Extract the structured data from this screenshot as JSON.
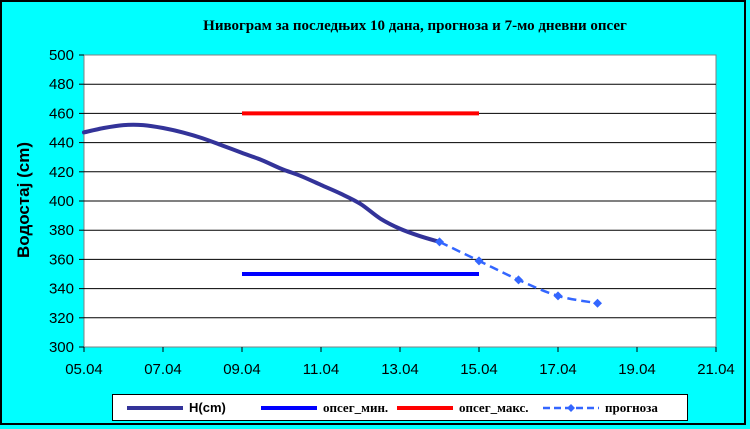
{
  "chart_data": {
    "type": "line",
    "title": "Ниво­грам за последњих 10 дана, прогноза и 7-мо дневни опсег",
    "ylabel": "Водостај (cm)",
    "xlabel": "",
    "ylim": [
      300,
      500
    ],
    "yticks": [
      "300",
      "320",
      "340",
      "360",
      "380",
      "400",
      "420",
      "440",
      "460",
      "480",
      "500"
    ],
    "xlim": [
      "05.04",
      "21.04"
    ],
    "xticks": [
      "05.04",
      "07.04",
      "09.04",
      "11.04",
      "13.04",
      "15.04",
      "17.04",
      "19.04",
      "21.04"
    ],
    "grid": "horizontal",
    "legend": "bottom",
    "series": [
      {
        "name": "H(cm)",
        "color": "#333399",
        "x": [
          5.0,
          5.5,
          6.0,
          6.5,
          7.0,
          7.5,
          8.0,
          8.5,
          9.0,
          9.5,
          10.0,
          10.5,
          11.0,
          11.5,
          12.0,
          12.5,
          13.0,
          13.5,
          14.0
        ],
        "y": [
          447,
          450,
          452,
          452,
          450,
          447,
          443,
          438,
          433,
          428,
          422,
          417,
          411,
          405,
          398,
          388,
          381,
          376,
          372
        ]
      },
      {
        "name": "опсег_мин.",
        "color": "#0000FF",
        "x": [
          9.0,
          15.0
        ],
        "y": [
          350,
          350
        ]
      },
      {
        "name": "опсег_макс.",
        "color": "#FF0000",
        "x": [
          9.0,
          15.0
        ],
        "y": [
          460,
          460
        ]
      },
      {
        "name": "прогноза",
        "color": "#3366FF",
        "x": [
          14.0,
          15.0,
          16.0,
          17.0,
          18.0
        ],
        "y": [
          372,
          359,
          346,
          335,
          330
        ]
      }
    ]
  },
  "title": "Ниво­грам за последњих 10 дана, прогноза и 7-мо дневни опсег",
  "legend": {
    "h": "H(cm)",
    "min": "опсег_мин.",
    "max": "опсег_макс.",
    "forecast": "прогноза"
  }
}
